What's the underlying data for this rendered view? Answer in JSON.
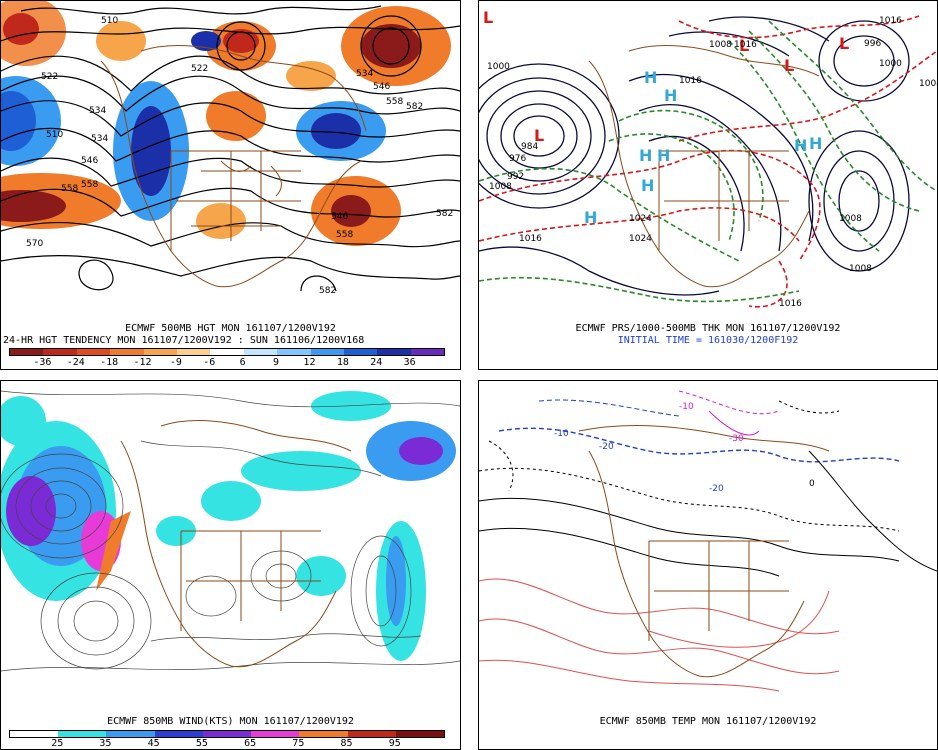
{
  "panels": [
    {
      "id": "p1",
      "captions": [
        "ECMWF 500MB HGT MON 161107/1200V192",
        "24-HR HGT TENDENCY MON 161107/1200V192 : SUN 161106/1200V168"
      ],
      "contour_labels": [
        "510",
        "522",
        "534",
        "546",
        "558",
        "570",
        "582",
        "510",
        "522",
        "534",
        "546",
        "558",
        "546",
        "558",
        "582",
        "582",
        "558",
        "534"
      ],
      "colorbar": {
        "ticks": [
          "-36",
          "-24",
          "-18",
          "-12",
          "-9",
          "-6",
          "6",
          "9",
          "12",
          "18",
          "24",
          "36"
        ],
        "colors": [
          "#8b1a1a",
          "#c0281c",
          "#e04a1f",
          "#f07b2a",
          "#f7a54a",
          "#fbd08a",
          "#ffffff",
          "#bfe6ff",
          "#7fc8ff",
          "#3a9cf0",
          "#1f5fd6",
          "#1a2fa8",
          "#6a2bbf"
        ]
      }
    },
    {
      "id": "p2",
      "captions": [
        "ECMWF PRS/1000-500MB THK MON 161107/1200V192",
        "INITIAL TIME = 161030/1200F192"
      ],
      "high_low_symbols": [
        "L",
        "L",
        "L",
        "L",
        "L",
        "H",
        "H",
        "H",
        "H",
        "H",
        "H",
        "H",
        "H"
      ],
      "contour_labels": [
        "1008",
        "1016",
        "1000",
        "992",
        "984",
        "976",
        "1008",
        "1016",
        "1024",
        "1016",
        "1008",
        "1016",
        "1008",
        "1000",
        "1008",
        "1016",
        "996",
        "1024"
      ]
    },
    {
      "id": "p3",
      "captions": [
        "ECMWF 850MB WIND(KTS) MON 161107/1200V192"
      ],
      "colorbar": {
        "ticks": [
          "25",
          "35",
          "45",
          "55",
          "65",
          "75",
          "85",
          "95"
        ],
        "colors": [
          "#ffffff",
          "#35e3e3",
          "#3a9cf0",
          "#2b3fd6",
          "#7a2bd6",
          "#e83ad6",
          "#f07b2a",
          "#c0281c",
          "#7a1010"
        ]
      }
    },
    {
      "id": "p4",
      "captions": [
        "ECMWF 850MB TEMP MON 161107/1200V192"
      ],
      "contour_labels": [
        "-10",
        "-20",
        "-30",
        "0",
        "-10",
        "-20"
      ]
    }
  ]
}
